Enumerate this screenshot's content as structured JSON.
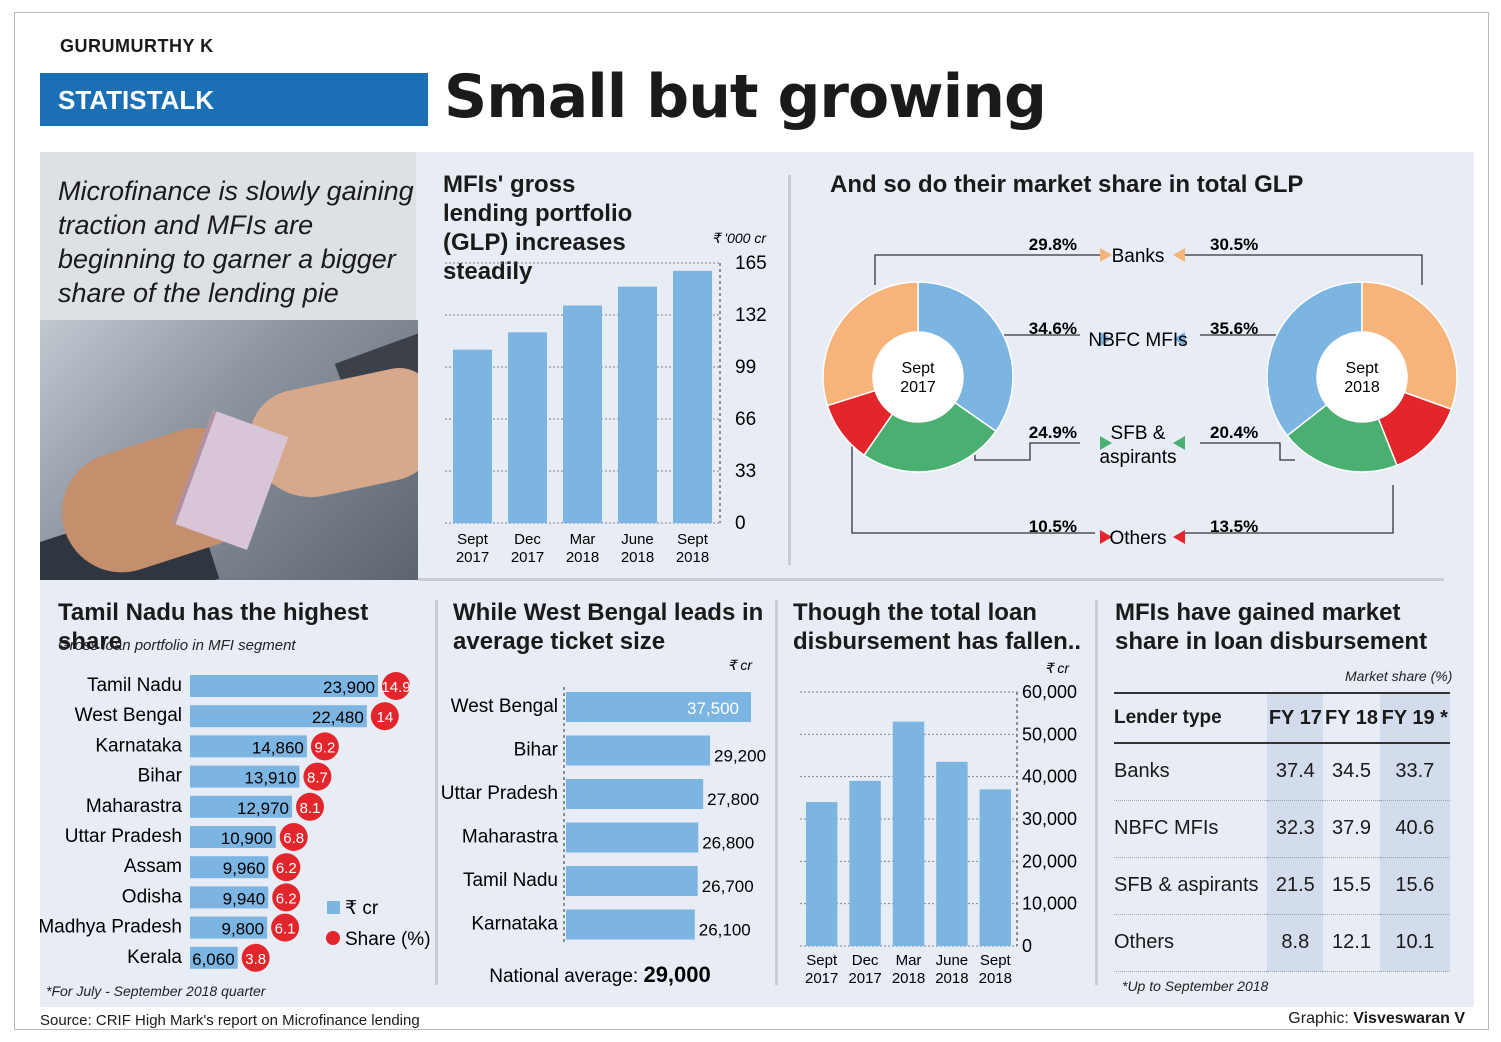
{
  "header": {
    "author": "GURUMURTHY K",
    "section": "STATISTALK",
    "headline": "Small but growing"
  },
  "intro": {
    "text": "Microfinance is slowly gaining traction and MFIs are beginning to garner a bigger share of the lending pie"
  },
  "footer": {
    "source": "Source: CRIF High Mark's report on Microfinance lending",
    "credit_label": "Graphic:",
    "credit_name": "Visveswaran V"
  },
  "chart_data": [
    {
      "type": "bar",
      "title": "MFIs' gross lending portfolio (GLP) increases steadily",
      "unit": "₹ '000 cr",
      "categories": [
        "Sept 2017",
        "Dec 2017",
        "Mar 2018",
        "June 2018",
        "Sept 2018"
      ],
      "values": [
        110,
        121,
        138,
        150,
        160
      ],
      "ylim": [
        0,
        165
      ],
      "yticks": [
        0,
        33,
        66,
        99,
        132,
        165
      ],
      "grid": true
    },
    {
      "type": "pie",
      "title": "And so do their market share in total GLP",
      "categories": [
        "Banks",
        "NBFC MFIs",
        "SFB & aspirants",
        "Others"
      ],
      "colors": {
        "Banks": "#f7b47a",
        "NBFC MFIs": "#7cb5e2",
        "SFB & aspirants": "#4caf72",
        "Others": "#e3262b"
      },
      "series": [
        {
          "name": "Sept 2017",
          "values": [
            29.8,
            34.6,
            24.9,
            10.5
          ],
          "labels": [
            "29.8%",
            "34.6%",
            "24.9%",
            "10.5%"
          ]
        },
        {
          "name": "Sept 2018",
          "values": [
            30.5,
            35.6,
            20.4,
            13.5
          ],
          "labels": [
            "30.5%",
            "35.6%",
            "20.4%",
            "13.5%"
          ]
        }
      ]
    },
    {
      "type": "bar",
      "orientation": "horizontal",
      "title": "Tamil Nadu has the highest share",
      "subtitle": "Gross loan portfolio in MFI segment",
      "categories": [
        "Tamil Nadu",
        "West Bengal",
        "Karnataka",
        "Bihar",
        "Maharastra",
        "Uttar Pradesh",
        "Assam",
        "Odisha",
        "Madhya Pradesh",
        "Kerala"
      ],
      "series": [
        {
          "name": "₹ cr",
          "values": [
            23900,
            22480,
            14860,
            13910,
            12970,
            10900,
            9960,
            9940,
            9800,
            6060
          ],
          "labels": [
            "23,900",
            "22,480",
            "14,860",
            "13,910",
            "12,970",
            "10,900",
            "9,960",
            "9,940",
            "9,800",
            "6,060"
          ]
        },
        {
          "name": "Share (%)",
          "values": [
            14.9,
            14,
            9.2,
            8.7,
            8.1,
            6.8,
            6.2,
            6.2,
            6.1,
            3.8
          ],
          "labels": [
            "14.9",
            "14",
            "9.2",
            "8.7",
            "8.1",
            "6.8",
            "6.2",
            "6.2",
            "6.1",
            "3.8"
          ]
        }
      ],
      "footnote": "*For July - September 2018 quarter"
    },
    {
      "type": "bar",
      "orientation": "horizontal",
      "title": "While West Bengal leads in average ticket size",
      "unit": "₹ cr",
      "categories": [
        "West Bengal",
        "Bihar",
        "Uttar Pradesh",
        "Maharastra",
        "Tamil Nadu",
        "Karnataka"
      ],
      "values": [
        37500,
        29200,
        27800,
        26800,
        26700,
        26100
      ],
      "labels": [
        "37,500",
        "29,200",
        "27,800",
        "26,800",
        "26,700",
        "26,100"
      ],
      "note_label": "National average:",
      "note_value": "29,000"
    },
    {
      "type": "bar",
      "title": "Though the total loan disbursement has fallen..",
      "unit": "₹ cr",
      "categories": [
        "Sept 2017",
        "Dec 2017",
        "Mar 2018",
        "June 2018",
        "Sept 2018"
      ],
      "values": [
        34000,
        39000,
        53000,
        43500,
        37000
      ],
      "ylim": [
        0,
        60000
      ],
      "yticks": [
        0,
        10000,
        20000,
        30000,
        40000,
        50000,
        60000
      ],
      "ytick_labels": [
        "0",
        "10,000",
        "20,000",
        "30,000",
        "40,000",
        "50,000",
        "60,000"
      ],
      "grid": true
    },
    {
      "type": "table",
      "title": "MFIs have gained market share in loan disbursement",
      "unit": "Market share (%)",
      "columns": [
        "Lender type",
        "FY 17",
        "FY 18",
        "FY 19 *"
      ],
      "rows": [
        [
          "Banks",
          "37.4",
          "34.5",
          "33.7"
        ],
        [
          "NBFC MFIs",
          "32.3",
          "37.9",
          "40.6"
        ],
        [
          "SFB & aspirants",
          "21.5",
          "15.5",
          "15.6"
        ],
        [
          "Others",
          "8.8",
          "12.1",
          "10.1"
        ]
      ],
      "footnote": "*Up to September 2018"
    }
  ]
}
